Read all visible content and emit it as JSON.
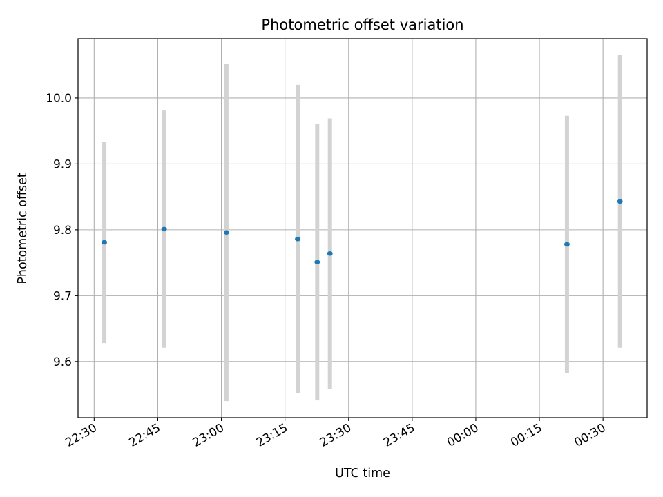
{
  "chart_data": {
    "type": "scatter",
    "title": "Photometric offset variation",
    "xlabel": "UTC time",
    "ylabel": "Photometric offset",
    "x_tick_labels": [
      "22:30",
      "22:45",
      "23:00",
      "23:15",
      "23:30",
      "23:45",
      "00:00",
      "00:15",
      "00:30"
    ],
    "x_tick_minutes": [
      0,
      15,
      30,
      45,
      60,
      75,
      90,
      105,
      120
    ],
    "xlim_minutes": [
      -3.8,
      130.4
    ],
    "y_ticks": [
      9.6,
      9.7,
      9.8,
      9.9,
      10.0
    ],
    "y_tick_labels": [
      "9.6",
      "9.7",
      "9.8",
      "9.9",
      "10.0"
    ],
    "ylim": [
      9.515,
      10.09
    ],
    "grid": true,
    "series": [
      {
        "x_utc": [
          "22:32:24",
          "22:46:30",
          "23:01:12",
          "23:18:00",
          "23:22:36",
          "23:25:36",
          "00:21:30",
          "00:34:00"
        ],
        "x_minutes": [
          2.4,
          16.5,
          31.2,
          48.0,
          52.6,
          55.6,
          111.5,
          124.0
        ],
        "y": [
          9.781,
          9.801,
          9.796,
          9.786,
          9.751,
          9.764,
          9.778,
          9.843
        ],
        "yerr": [
          0.153,
          0.18,
          0.256,
          0.234,
          0.21,
          0.205,
          0.195,
          0.222
        ]
      }
    ],
    "colors": {
      "marker": "#1f77b4",
      "errorbar": "#d3d3d3",
      "grid": "#b0b0b0",
      "axes": "#000000"
    }
  }
}
